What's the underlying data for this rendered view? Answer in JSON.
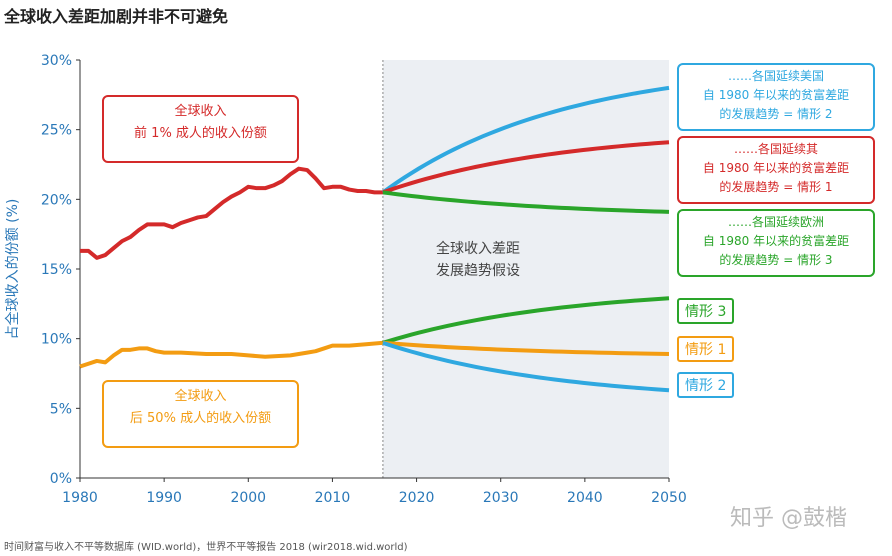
{
  "title": "全球收入差距加剧并非不可避免",
  "source": "时间财富与收入不平等数据库 (WID.world)，世界不平等报告 2018 (wir2018.wid.world)",
  "watermark": "知乎 @鼓楷",
  "colors": {
    "red": "#d42a2a",
    "orange": "#f39c12",
    "blue": "#2fa8e0",
    "green": "#2aa52a",
    "ylabel": "#2a78b8",
    "shade": "#eceff3"
  },
  "chart_data": {
    "type": "line",
    "title": "全球收入差距加剧并非不可避免",
    "ylabel": "占全球收入的份额 (%)",
    "xlim": [
      1980,
      2050
    ],
    "ylim": [
      0,
      30
    ],
    "xticks": [
      "1980",
      "1990",
      "2000",
      "2010",
      "2020",
      "2030",
      "2040",
      "2050"
    ],
    "yticks": [
      "0%",
      "5%",
      "10%",
      "15%",
      "20%",
      "25%",
      "30%"
    ],
    "projection_start": 2016,
    "projection_label": [
      "全球收入差距",
      "发展趋势假设"
    ],
    "series": [
      {
        "name": "全球收入 前 1% 成人的收入份额",
        "color": "red",
        "x": [
          1980,
          1981,
          1982,
          1983,
          1984,
          1985,
          1986,
          1987,
          1988,
          1989,
          1990,
          1991,
          1992,
          1993,
          1994,
          1995,
          1996,
          1997,
          1998,
          1999,
          2000,
          2001,
          2002,
          2003,
          2004,
          2005,
          2006,
          2007,
          2008,
          2009,
          2010,
          2011,
          2012,
          2013,
          2014,
          2015,
          2016
        ],
        "y": [
          16.3,
          16.3,
          15.8,
          16.0,
          16.5,
          17.0,
          17.3,
          17.8,
          18.2,
          18.2,
          18.2,
          18.0,
          18.3,
          18.5,
          18.7,
          18.8,
          19.3,
          19.8,
          20.2,
          20.5,
          20.9,
          20.8,
          20.8,
          21.0,
          21.3,
          21.8,
          22.2,
          22.1,
          21.5,
          20.8,
          20.9,
          20.9,
          20.7,
          20.6,
          20.6,
          20.5,
          20.5
        ]
      },
      {
        "name": "全球收入 后 50% 成人的收入份额",
        "color": "orange",
        "x": [
          1980,
          1981,
          1982,
          1983,
          1984,
          1985,
          1986,
          1987,
          1988,
          1989,
          1990,
          1992,
          1995,
          1998,
          2000,
          2002,
          2005,
          2007,
          2008,
          2009,
          2010,
          2012,
          2014,
          2016
        ],
        "y": [
          8.0,
          8.2,
          8.4,
          8.3,
          8.8,
          9.2,
          9.2,
          9.3,
          9.3,
          9.1,
          9.0,
          9.0,
          8.9,
          8.9,
          8.8,
          8.7,
          8.8,
          9.0,
          9.1,
          9.3,
          9.5,
          9.5,
          9.6,
          9.7
        ]
      }
    ],
    "projections": [
      {
        "group": "top1",
        "scenario": "情形 2",
        "color": "blue",
        "x": [
          2016,
          2050
        ],
        "y": [
          20.5,
          28.0
        ]
      },
      {
        "group": "top1",
        "scenario": "情形 1",
        "color": "red",
        "x": [
          2016,
          2050
        ],
        "y": [
          20.5,
          24.1
        ]
      },
      {
        "group": "top1",
        "scenario": "情形 3",
        "color": "green",
        "x": [
          2016,
          2050
        ],
        "y": [
          20.5,
          19.1
        ]
      },
      {
        "group": "bottom50",
        "scenario": "情形 3",
        "color": "green",
        "x": [
          2016,
          2050
        ],
        "y": [
          9.7,
          12.9
        ]
      },
      {
        "group": "bottom50",
        "scenario": "情形 1",
        "color": "orange",
        "x": [
          2016,
          2050
        ],
        "y": [
          9.7,
          8.9
        ]
      },
      {
        "group": "bottom50",
        "scenario": "情形 2",
        "color": "blue",
        "x": [
          2016,
          2050
        ],
        "y": [
          9.7,
          6.3
        ]
      }
    ],
    "annotations": {
      "top1": [
        "全球收入",
        "前 1% 成人的收入份额"
      ],
      "bottom50": [
        "全球收入",
        "后 50% 成人的收入份额"
      ],
      "scenario_boxes": [
        {
          "color": "blue",
          "lines": [
            "……各国延续美国",
            "自 1980 年以来的贫富差距",
            "的发展趋势 = 情形 2"
          ]
        },
        {
          "color": "red",
          "lines": [
            "……各国延续其",
            "自 1980 年以来的贫富差距",
            "的发展趋势 = 情形 1"
          ]
        },
        {
          "color": "green",
          "lines": [
            "……各国延续欧洲",
            "自 1980 年以来的贫富差距",
            "的发展趋势 = 情形 3"
          ]
        }
      ],
      "scenario_tags": [
        {
          "label": "情形 3",
          "color": "green"
        },
        {
          "label": "情形 1",
          "color": "orange"
        },
        {
          "label": "情形 2",
          "color": "blue"
        }
      ]
    }
  }
}
